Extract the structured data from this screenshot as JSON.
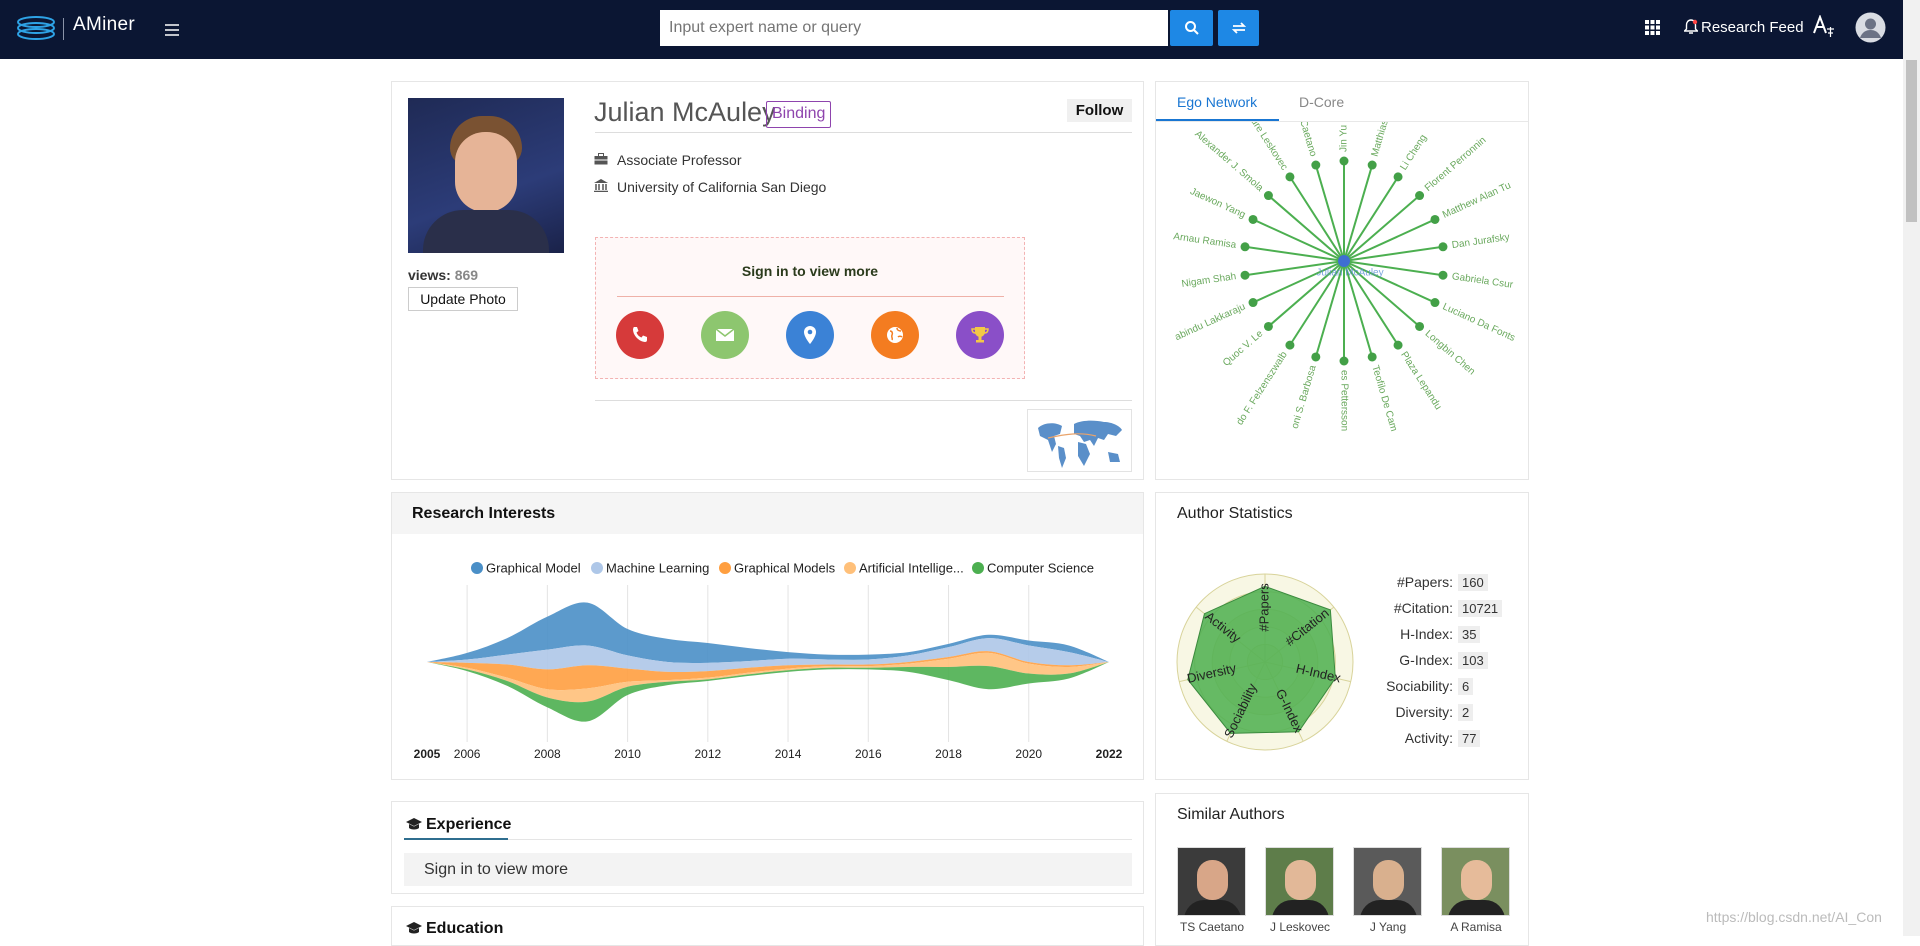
{
  "nav": {
    "logo": "AMiner",
    "search_placeholder": "Input expert name or query",
    "research_feed": "Research Feed"
  },
  "profile": {
    "name": "Julian McAuley",
    "tag": "Binding",
    "follow": "Follow",
    "position": "Associate Professor",
    "org": "University of California San Diego",
    "views_label": "views:",
    "views": 869,
    "update_photo": "Update Photo",
    "sign_in": "Sign in to view more"
  },
  "ego": {
    "tabs": [
      "Ego Network",
      "D-Core"
    ],
    "center": "Julian McAuley",
    "nodes": [
      "Jin Yu",
      "Matthias O. Fr",
      "Li Cheng",
      "Florent Perronnin",
      "Matthew Alan Tu",
      "Dan Jurafsky",
      "Gabriela Csur",
      "Luciano Da Fonts",
      "Longbin Chen",
      "Plaza Lepandu",
      "Teofilo De Cam",
      "es Pettersson",
      "oni S. Barbosa",
      "do F. Felzenszwalb",
      "Quoc V. Le",
      "abindu Lakkaraju",
      "Nigam Shah",
      "Arnau Ramisa",
      "Jaewon Yang",
      "Alexander J. Smola",
      "Jure Leskovec",
      "Tiberio S. Caetano"
    ]
  },
  "research_interests": {
    "title": "Research Interests"
  },
  "author_statistics": {
    "title": "Author Statistics",
    "rows": [
      {
        "label": "#Papers:",
        "value": 160
      },
      {
        "label": "#Citation:",
        "value": 10721
      },
      {
        "label": "H-Index:",
        "value": 35
      },
      {
        "label": "G-Index:",
        "value": 103
      },
      {
        "label": "Sociability:",
        "value": 6
      },
      {
        "label": "Diversity:",
        "value": 2
      },
      {
        "label": "Activity:",
        "value": 77
      }
    ]
  },
  "chart_data": [
    {
      "type": "stream",
      "x": [
        2005,
        2006,
        2007,
        2008,
        2009,
        2010,
        2011,
        2012,
        2013,
        2014,
        2015,
        2016,
        2017,
        2018,
        2019,
        2020,
        2021,
        2022
      ],
      "xlim": [
        2005,
        2022
      ],
      "xticks": [
        2005,
        2006,
        2008,
        2010,
        2012,
        2014,
        2016,
        2018,
        2020,
        2022
      ],
      "series": [
        {
          "name": "Graphical Model",
          "color": "#4a8fc7",
          "values": [
            0,
            4,
            10,
            20,
            26,
            16,
            14,
            12,
            8,
            4,
            3,
            3,
            2,
            2,
            2,
            3,
            4,
            0
          ]
        },
        {
          "name": "Machine Learning",
          "color": "#aec7e8",
          "values": [
            0,
            2,
            6,
            12,
            12,
            8,
            6,
            5,
            4,
            4,
            3,
            3,
            4,
            6,
            8,
            10,
            8,
            0
          ]
        },
        {
          "name": "Graphical Models",
          "color": "#ff9f40",
          "values": [
            0,
            3,
            8,
            12,
            14,
            8,
            5,
            4,
            3,
            2,
            1,
            1,
            1,
            1,
            1,
            1,
            1,
            0
          ]
        },
        {
          "name": "Artificial Intellige...",
          "color": "#ffc07a",
          "values": [
            0,
            1,
            2,
            5,
            8,
            3,
            1,
            1,
            1,
            1,
            1,
            1,
            2,
            5,
            8,
            6,
            4,
            0
          ]
        },
        {
          "name": "Computer Science",
          "color": "#4caf50",
          "values": [
            0,
            1,
            3,
            6,
            12,
            5,
            2,
            1,
            1,
            1,
            1,
            1,
            3,
            8,
            14,
            6,
            3,
            0
          ]
        }
      ]
    },
    {
      "type": "radar",
      "categories": [
        "#Papers",
        "#Citation",
        "H-Index",
        "G-Index",
        "Sociability",
        "Diversity",
        "Activity"
      ],
      "values": [
        0.86,
        0.95,
        0.82,
        0.88,
        0.9,
        0.9,
        0.88
      ],
      "rlim": [
        0,
        1
      ],
      "rticks": [
        0.2,
        0.4,
        0.6,
        0.8,
        1
      ],
      "color": "#4caf50"
    }
  ],
  "similar_authors": {
    "title": "Similar Authors",
    "names": [
      "TS Caetano",
      "J Leskovec",
      "J Yang",
      "A Ramisa"
    ]
  },
  "experience": {
    "title": "Experience",
    "sign_in": "Sign in to view more"
  },
  "education": {
    "title": "Education"
  },
  "watermark": "https://blog.csdn.net/AI_Con"
}
